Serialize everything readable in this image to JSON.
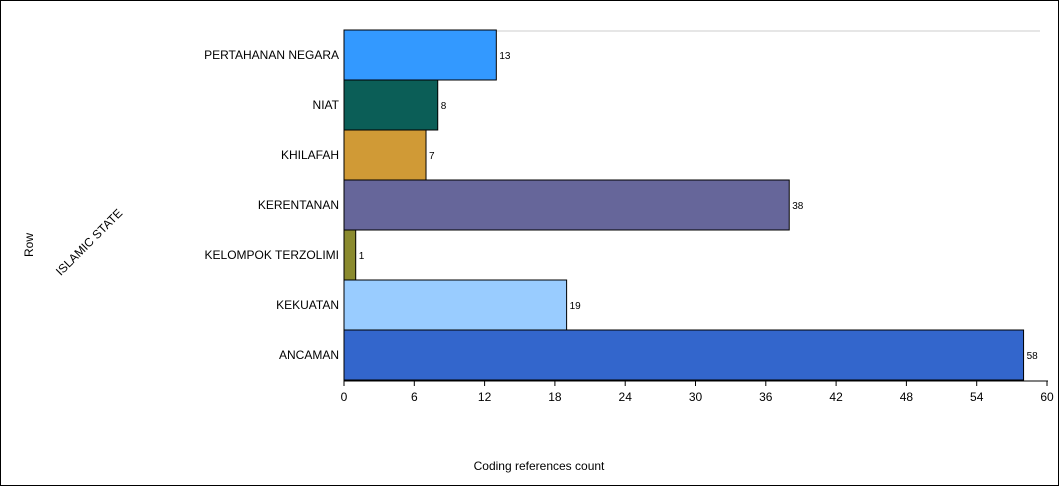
{
  "chart_data": {
    "type": "bar",
    "orientation": "horizontal",
    "categories": [
      "PERTAHANAN NEGARA",
      "NIAT",
      "KHILAFAH",
      "KERENTANAN",
      "KELOMPOK TERZOLIMI",
      "KEKUATAN",
      "ANCAMAN"
    ],
    "values": [
      13,
      8,
      7,
      38,
      1,
      19,
      58
    ],
    "colors": [
      "#3399ff",
      "#0b5e57",
      "#d09a36",
      "#66669a",
      "#8a8a2e",
      "#99ccff",
      "#3366cc"
    ],
    "group_label": "ISLAMIC STATE",
    "ylabel": "Row",
    "xlabel": "Coding references count",
    "xlim": [
      0,
      60
    ],
    "xticks": [
      0,
      6,
      12,
      18,
      24,
      30,
      36,
      42,
      48,
      54,
      60
    ],
    "grid": false
  }
}
